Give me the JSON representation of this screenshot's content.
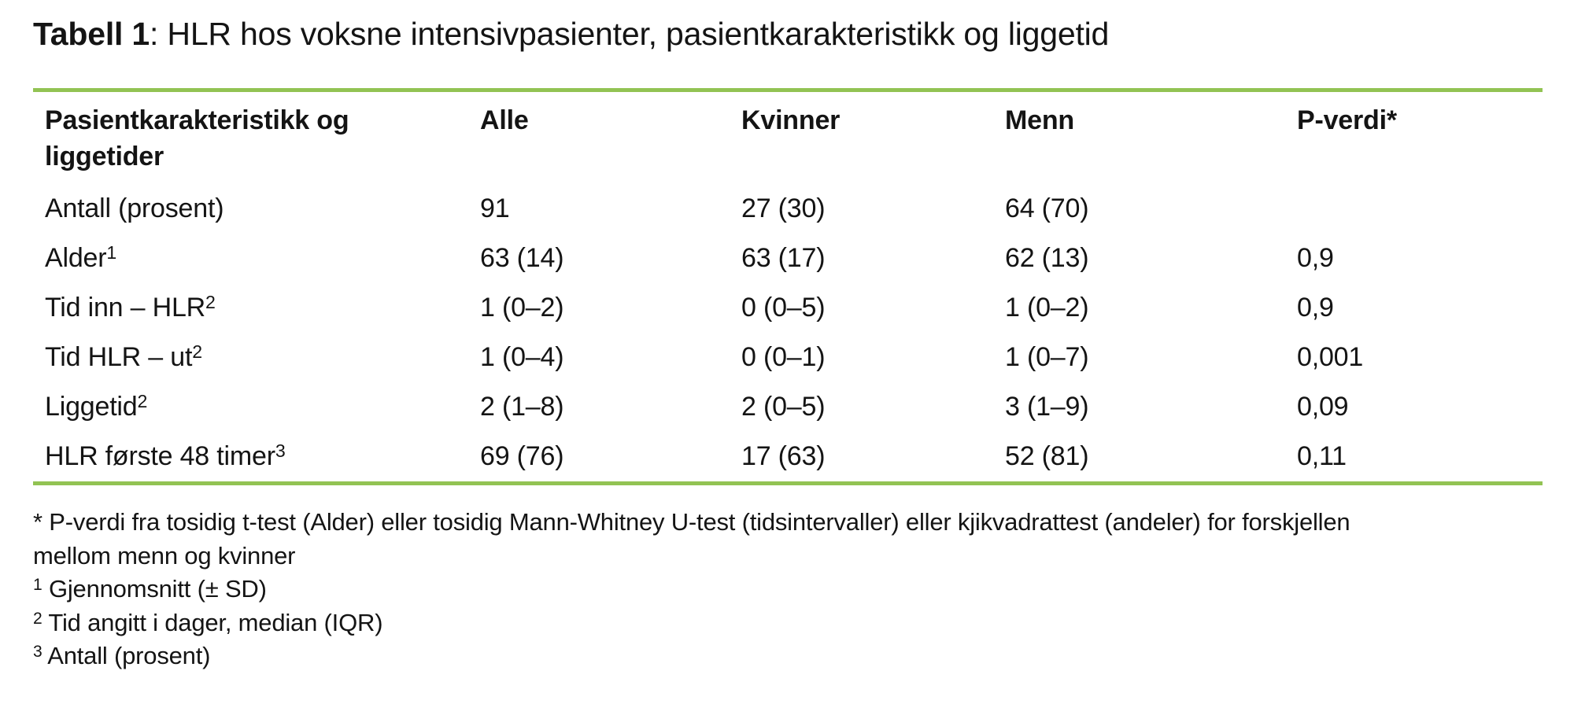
{
  "title": {
    "prefix": "Tabell 1",
    "rest": ": HLR hos voksne intensivpasienter, pasientkarakteristikk og liggetid"
  },
  "colors": {
    "rule_green": "#92C353",
    "text": "#141414"
  },
  "table": {
    "columns": [
      "Pasientkarakteristikk og liggetider",
      "Alle",
      "Kvinner",
      "Menn",
      "P-verdi*"
    ],
    "rows": [
      {
        "label": "Antall (prosent)",
        "sup": "",
        "values": [
          "91",
          "27 (30)",
          "64 (70)",
          ""
        ]
      },
      {
        "label": "Alder",
        "sup": "1",
        "values": [
          "63 (14)",
          "63 (17)",
          "62 (13)",
          "0,9"
        ]
      },
      {
        "label": "Tid inn – HLR",
        "sup": "2",
        "values": [
          "1 (0–2)",
          "0 (0–5)",
          "1 (0–2)",
          "0,9"
        ]
      },
      {
        "label": "Tid HLR – ut",
        "sup": "2",
        "values": [
          "1 (0–4)",
          "0 (0–1)",
          "1 (0–7)",
          "0,001"
        ]
      },
      {
        "label": "Liggetid",
        "sup": "2",
        "values": [
          "2 (1–8)",
          "2 (0–5)",
          "3 (1–9)",
          "0,09"
        ]
      },
      {
        "label": "HLR første 48 timer",
        "sup": "3",
        "values": [
          "69 (76)",
          "17 (63)",
          "52 (81)",
          "0,11"
        ]
      }
    ]
  },
  "footnotes": [
    {
      "marker": "*",
      "superscript": false,
      "text": "P-verdi fra tosidig t-test (Alder) eller tosidig Mann-Whitney U-test (tidsintervaller) eller kjikvadrattest (andeler) for forskjellen"
    },
    {
      "marker": "",
      "superscript": false,
      "text": "mellom menn og kvinner"
    },
    {
      "marker": "1",
      "superscript": true,
      "text": "Gjennomsnitt (± SD)"
    },
    {
      "marker": "2",
      "superscript": true,
      "text": "Tid angitt i dager, median (IQR)"
    },
    {
      "marker": "3",
      "superscript": true,
      "text": "Antall (prosent)"
    }
  ]
}
